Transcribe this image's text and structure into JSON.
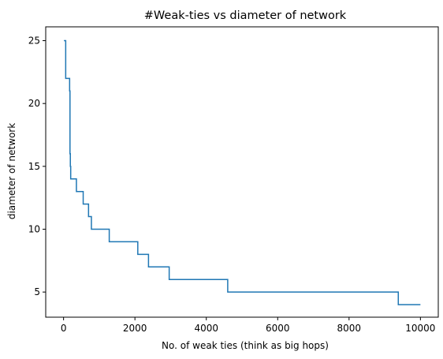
{
  "chart_data": {
    "type": "line",
    "title": "#Weak-ties vs diameter of network",
    "xlabel": "No. of weak ties (think as big hops)",
    "ylabel": "diameter of network",
    "xlim": [
      -500,
      10500
    ],
    "ylim": [
      3,
      26.1
    ],
    "xticks": [
      0,
      2000,
      4000,
      6000,
      8000,
      10000
    ],
    "yticks": [
      5,
      10,
      15,
      20,
      25
    ],
    "grid": false,
    "legend": "none",
    "step": "post",
    "color": "#1f77b4",
    "series": [
      {
        "x": [
          10,
          60,
          150,
          170,
          180,
          190,
          200,
          280,
          360,
          430,
          550,
          630,
          700,
          780,
          1100,
          1280,
          2080,
          2380,
          2960,
          4600,
          9380,
          10000
        ],
        "y": [
          25,
          22,
          22,
          21,
          16,
          15,
          14,
          14,
          13,
          13,
          12,
          12,
          11,
          10,
          10,
          9,
          8,
          7,
          6,
          5,
          4,
          4
        ]
      }
    ]
  }
}
